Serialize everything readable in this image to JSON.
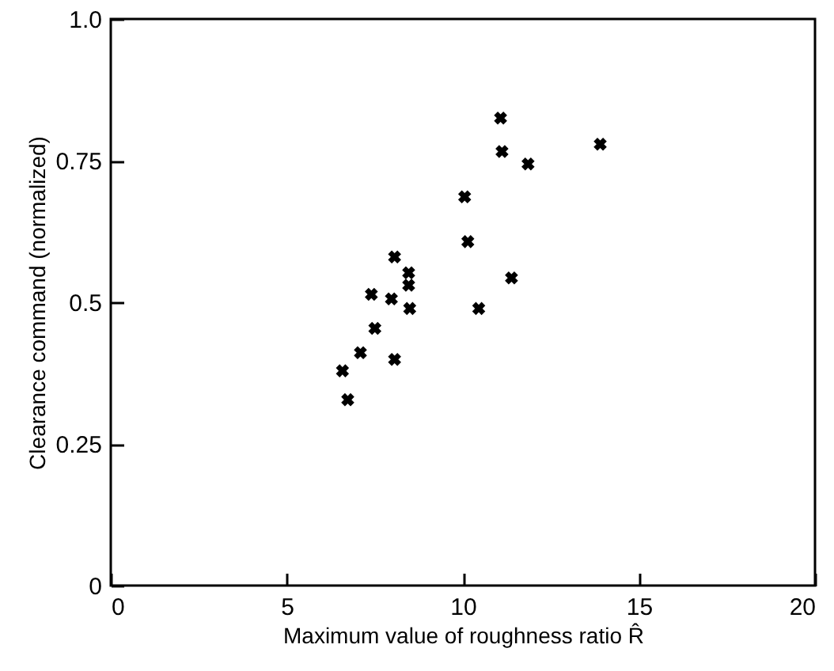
{
  "chart_data": {
    "type": "scatter",
    "xlabel": "Maximum value of roughness ratio R̂",
    "ylabel": "Clearance command (normalized)",
    "xlim": [
      0,
      20
    ],
    "xticks": [
      0,
      5,
      10,
      15,
      20
    ],
    "ylim": [
      0,
      1.0
    ],
    "yticks": [
      {
        "value": 0,
        "label": "0"
      },
      0.25,
      0.5,
      0.75,
      {
        "value": 1.0,
        "label": "1.0"
      }
    ],
    "marker": "cross",
    "grid": false,
    "series": [
      {
        "color": "#000000",
        "x": [
          11.07,
          11.11,
          11.85,
          13.9,
          10.05,
          10.14,
          11.38,
          10.45,
          8.06,
          8.46,
          8.46,
          8.49,
          7.4,
          7.97,
          7.5,
          7.09,
          8.06,
          6.58,
          6.73
        ],
        "values": [
          0.825,
          0.766,
          0.744,
          0.779,
          0.686,
          0.607,
          0.543,
          0.489,
          0.58,
          0.552,
          0.53,
          0.489,
          0.514,
          0.506,
          0.454,
          0.411,
          0.399,
          0.379,
          0.328
        ]
      }
    ]
  }
}
